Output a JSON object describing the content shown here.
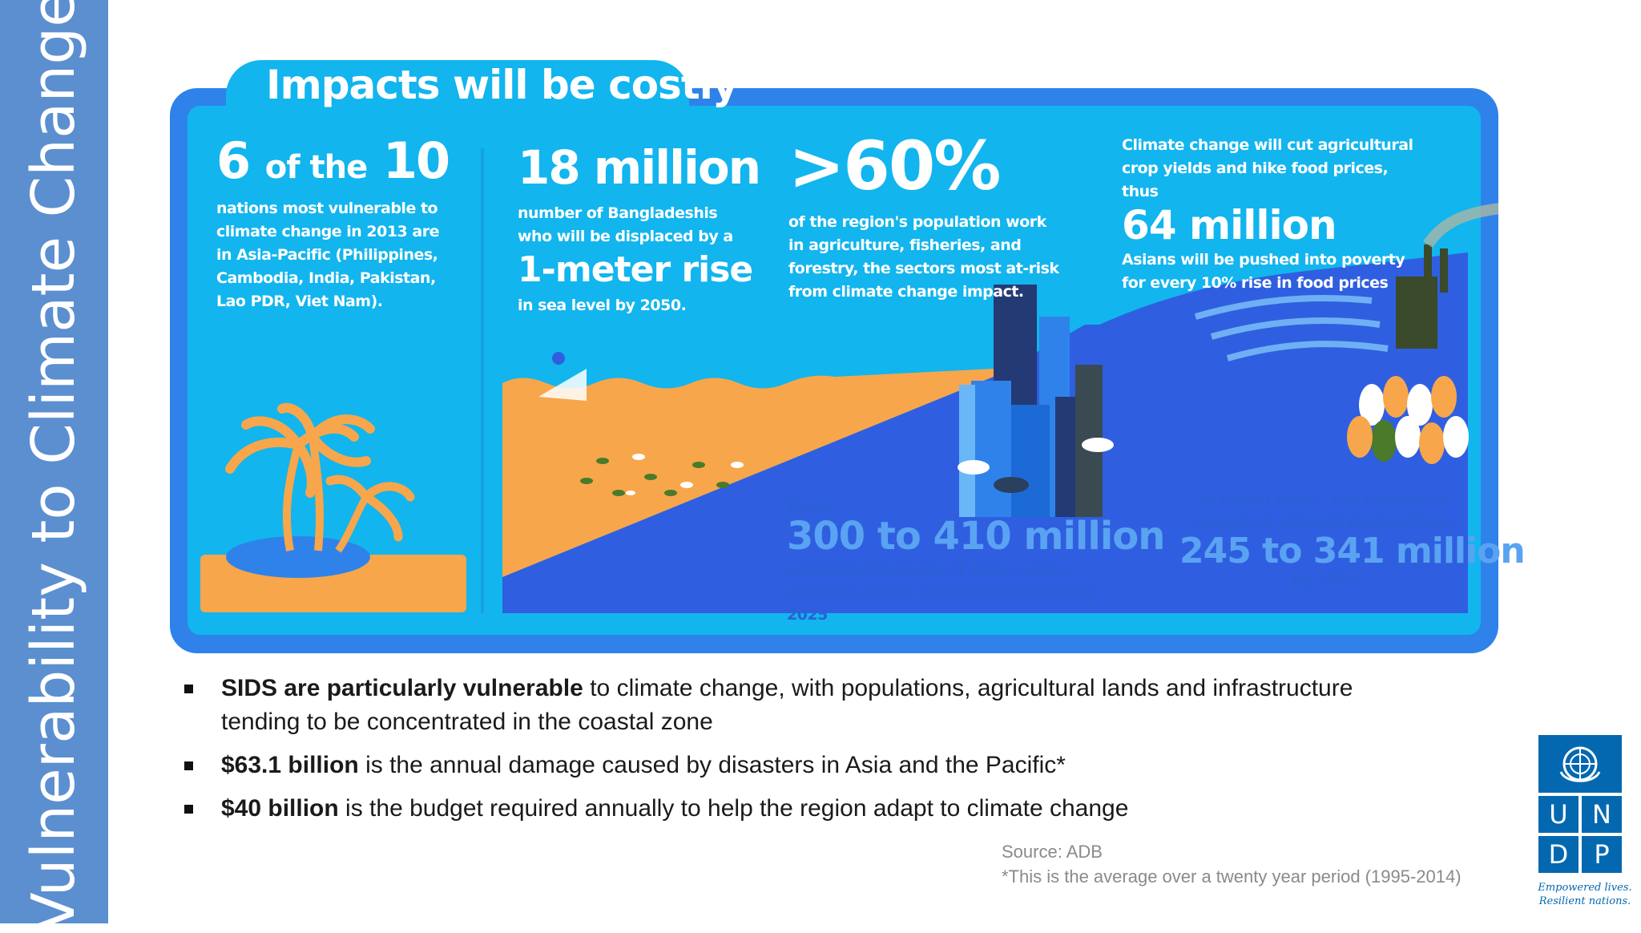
{
  "side_title": "Vulnerability to Climate Change",
  "infographic": {
    "title": "Impacts will be costly",
    "block1": {
      "stat_a": "6",
      "stat_b": "of the",
      "stat_c": "10",
      "desc": "nations most vulnerable to climate change in 2013 are in Asia-Pacific (Philippines, Cambodia, India, Pakistan, Lao PDR, Viet Nam)."
    },
    "block2": {
      "stat": "18 million",
      "desc": "number of Bangladeshis who will be displaced by a",
      "highlight": "1-meter rise",
      "tail": "in sea level by 2050."
    },
    "block3": {
      "stat": ">60%",
      "desc": "of the region's population work in agriculture, fisheries, and forestry, the sectors most at-risk from climate change impact."
    },
    "block4": {
      "lead": "Climate change will cut agricultural crop yields and hike food prices, thus",
      "stat": "64 million",
      "desc": "Asians will be pushed into poverty for every 10% rise in food prices"
    },
    "block5": {
      "lead": "from",
      "stat": "300 to 410 million",
      "desc": "estimated increase of Asian urban dwellers at risk of coastal flooding by 2025"
    },
    "block6": {
      "lead": "In inland areas, the number of people at risk will decline from",
      "stat": "245 to 341 million",
      "tail": "by 2025"
    }
  },
  "bullets": [
    {
      "bold": "SIDS are particularly vulnerable",
      "text": " to climate change, with populations, agricultural lands and infrastructure tending to be concentrated in the coastal zone"
    },
    {
      "bold": "$63.1 billion",
      "text": " is the annual damage caused by disasters in Asia and the Pacific*"
    },
    {
      "bold": "$40 billion",
      "text": " is the budget required annually to help the region adapt to climate change"
    }
  ],
  "source": {
    "line1": "Source: ADB",
    "line2": "*This is the average over a twenty year period (1995-2014)"
  },
  "logo": {
    "letters": [
      "U",
      "N",
      "D",
      "P"
    ],
    "tagline1": "Empowered lives.",
    "tagline2": "Resilient nations."
  },
  "colors": {
    "side_band": "#5b8fd0",
    "panel_border": "#2f82ea",
    "panel_fill": "#12b5ee",
    "sand": "#f7a64b",
    "deep_blue": "#2d5fd7",
    "undp_blue": "#0468b1"
  }
}
